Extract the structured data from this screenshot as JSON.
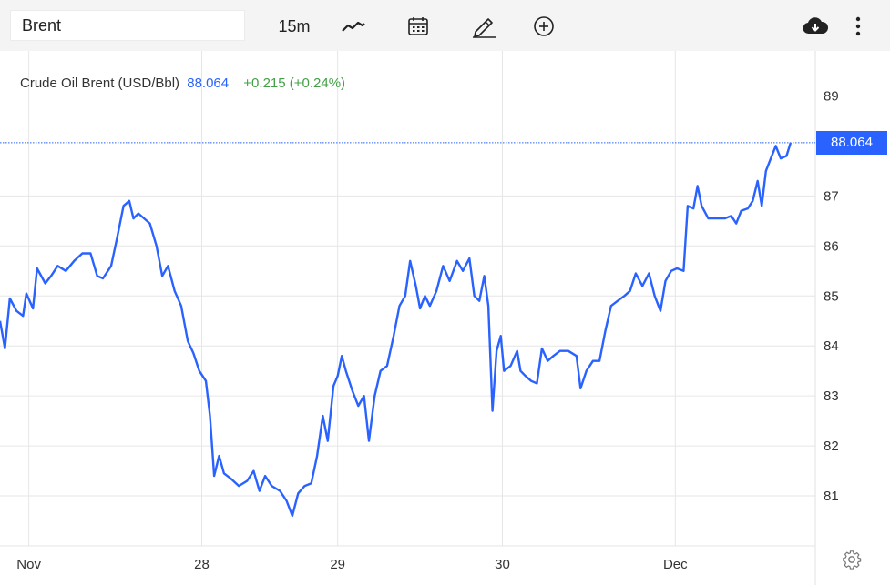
{
  "toolbar": {
    "symbol": "Brent",
    "interval": "15m",
    "icons": [
      "line-chart-icon",
      "calendar-icon",
      "pencil-draw-icon",
      "add-circle-icon",
      "cloud-download-icon",
      "more-vertical-icon",
      "settings-gear-icon"
    ]
  },
  "legend": {
    "name": "Crude Oil Brent (USD/Bbl)",
    "price": "88.064",
    "change": "+0.215 (+0.24%)"
  },
  "last_price_label": "88.064",
  "colors": {
    "line": "#2962ff",
    "change_positive": "#43a047",
    "grid": "#e6e6e6"
  },
  "chart_data": {
    "type": "line",
    "title": "Crude Oil Brent (USD/Bbl)",
    "y_ticks": [
      81,
      82,
      83,
      84,
      85,
      86,
      87,
      89
    ],
    "ylim": [
      80.0,
      89.9
    ],
    "x_ticks": [
      {
        "label": "Nov",
        "t": 0.35
      },
      {
        "label": "28",
        "t": 2.45
      },
      {
        "label": "29",
        "t": 4.1
      },
      {
        "label": "30",
        "t": 6.1
      },
      {
        "label": "Dec",
        "t": 8.2
      }
    ],
    "xlim": [
      0,
      9.9
    ],
    "grid": true,
    "last_value": 88.064,
    "series": [
      {
        "name": "Brent",
        "points": [
          [
            0.0,
            84.5
          ],
          [
            0.06,
            83.95
          ],
          [
            0.12,
            84.95
          ],
          [
            0.2,
            84.7
          ],
          [
            0.28,
            84.6
          ],
          [
            0.32,
            85.05
          ],
          [
            0.4,
            84.75
          ],
          [
            0.45,
            85.55
          ],
          [
            0.55,
            85.25
          ],
          [
            0.62,
            85.4
          ],
          [
            0.7,
            85.6
          ],
          [
            0.8,
            85.5
          ],
          [
            0.9,
            85.7
          ],
          [
            1.0,
            85.85
          ],
          [
            1.1,
            85.85
          ],
          [
            1.18,
            85.4
          ],
          [
            1.25,
            85.35
          ],
          [
            1.35,
            85.6
          ],
          [
            1.42,
            86.15
          ],
          [
            1.5,
            86.8
          ],
          [
            1.57,
            86.9
          ],
          [
            1.62,
            86.55
          ],
          [
            1.68,
            86.65
          ],
          [
            1.75,
            86.55
          ],
          [
            1.82,
            86.45
          ],
          [
            1.9,
            86.0
          ],
          [
            1.97,
            85.4
          ],
          [
            2.04,
            85.6
          ],
          [
            2.12,
            85.1
          ],
          [
            2.2,
            84.8
          ],
          [
            2.28,
            84.1
          ],
          [
            2.35,
            83.85
          ],
          [
            2.42,
            83.5
          ],
          [
            2.5,
            83.3
          ],
          [
            2.55,
            82.6
          ],
          [
            2.6,
            81.4
          ],
          [
            2.66,
            81.8
          ],
          [
            2.72,
            81.45
          ],
          [
            2.8,
            81.35
          ],
          [
            2.9,
            81.2
          ],
          [
            3.0,
            81.3
          ],
          [
            3.08,
            81.5
          ],
          [
            3.15,
            81.1
          ],
          [
            3.22,
            81.4
          ],
          [
            3.3,
            81.2
          ],
          [
            3.4,
            81.1
          ],
          [
            3.48,
            80.9
          ],
          [
            3.55,
            80.6
          ],
          [
            3.62,
            81.05
          ],
          [
            3.7,
            81.2
          ],
          [
            3.78,
            81.25
          ],
          [
            3.85,
            81.8
          ],
          [
            3.92,
            82.6
          ],
          [
            3.98,
            82.1
          ],
          [
            4.05,
            83.2
          ],
          [
            4.1,
            83.4
          ],
          [
            4.15,
            83.8
          ],
          [
            4.2,
            83.5
          ],
          [
            4.28,
            83.1
          ],
          [
            4.35,
            82.8
          ],
          [
            4.42,
            83.0
          ],
          [
            4.48,
            82.1
          ],
          [
            4.55,
            83.0
          ],
          [
            4.62,
            83.5
          ],
          [
            4.7,
            83.6
          ],
          [
            4.78,
            84.2
          ],
          [
            4.85,
            84.8
          ],
          [
            4.92,
            85.0
          ],
          [
            4.98,
            85.7
          ],
          [
            5.05,
            85.2
          ],
          [
            5.1,
            84.75
          ],
          [
            5.16,
            85.0
          ],
          [
            5.22,
            84.8
          ],
          [
            5.3,
            85.1
          ],
          [
            5.38,
            85.6
          ],
          [
            5.46,
            85.3
          ],
          [
            5.55,
            85.7
          ],
          [
            5.62,
            85.5
          ],
          [
            5.7,
            85.75
          ],
          [
            5.76,
            85.0
          ],
          [
            5.82,
            84.9
          ],
          [
            5.88,
            85.4
          ],
          [
            5.93,
            84.8
          ],
          [
            5.98,
            82.7
          ],
          [
            6.03,
            83.9
          ],
          [
            6.08,
            84.2
          ],
          [
            6.12,
            83.5
          ],
          [
            6.2,
            83.6
          ],
          [
            6.28,
            83.9
          ],
          [
            6.32,
            83.5
          ],
          [
            6.38,
            83.4
          ],
          [
            6.45,
            83.3
          ],
          [
            6.52,
            83.25
          ],
          [
            6.58,
            83.95
          ],
          [
            6.65,
            83.7
          ],
          [
            6.72,
            83.8
          ],
          [
            6.8,
            83.9
          ],
          [
            6.9,
            83.9
          ],
          [
            7.0,
            83.8
          ],
          [
            7.05,
            83.15
          ],
          [
            7.12,
            83.5
          ],
          [
            7.2,
            83.7
          ],
          [
            7.28,
            83.7
          ],
          [
            7.35,
            84.3
          ],
          [
            7.42,
            84.8
          ],
          [
            7.5,
            84.9
          ],
          [
            7.58,
            85.0
          ],
          [
            7.65,
            85.1
          ],
          [
            7.72,
            85.45
          ],
          [
            7.8,
            85.2
          ],
          [
            7.88,
            85.45
          ],
          [
            7.95,
            85.0
          ],
          [
            8.02,
            84.7
          ],
          [
            8.08,
            85.3
          ],
          [
            8.15,
            85.5
          ],
          [
            8.22,
            85.55
          ],
          [
            8.3,
            85.5
          ],
          [
            8.35,
            86.8
          ],
          [
            8.42,
            86.75
          ],
          [
            8.47,
            87.2
          ],
          [
            8.52,
            86.8
          ],
          [
            8.6,
            86.55
          ],
          [
            8.7,
            86.55
          ],
          [
            8.8,
            86.55
          ],
          [
            8.88,
            86.6
          ],
          [
            8.94,
            86.45
          ],
          [
            9.0,
            86.7
          ],
          [
            9.08,
            86.75
          ],
          [
            9.14,
            86.9
          ],
          [
            9.2,
            87.3
          ],
          [
            9.25,
            86.8
          ],
          [
            9.3,
            87.5
          ],
          [
            9.36,
            87.75
          ],
          [
            9.42,
            88.0
          ],
          [
            9.48,
            87.75
          ],
          [
            9.55,
            87.8
          ],
          [
            9.6,
            88.064
          ]
        ]
      }
    ]
  }
}
